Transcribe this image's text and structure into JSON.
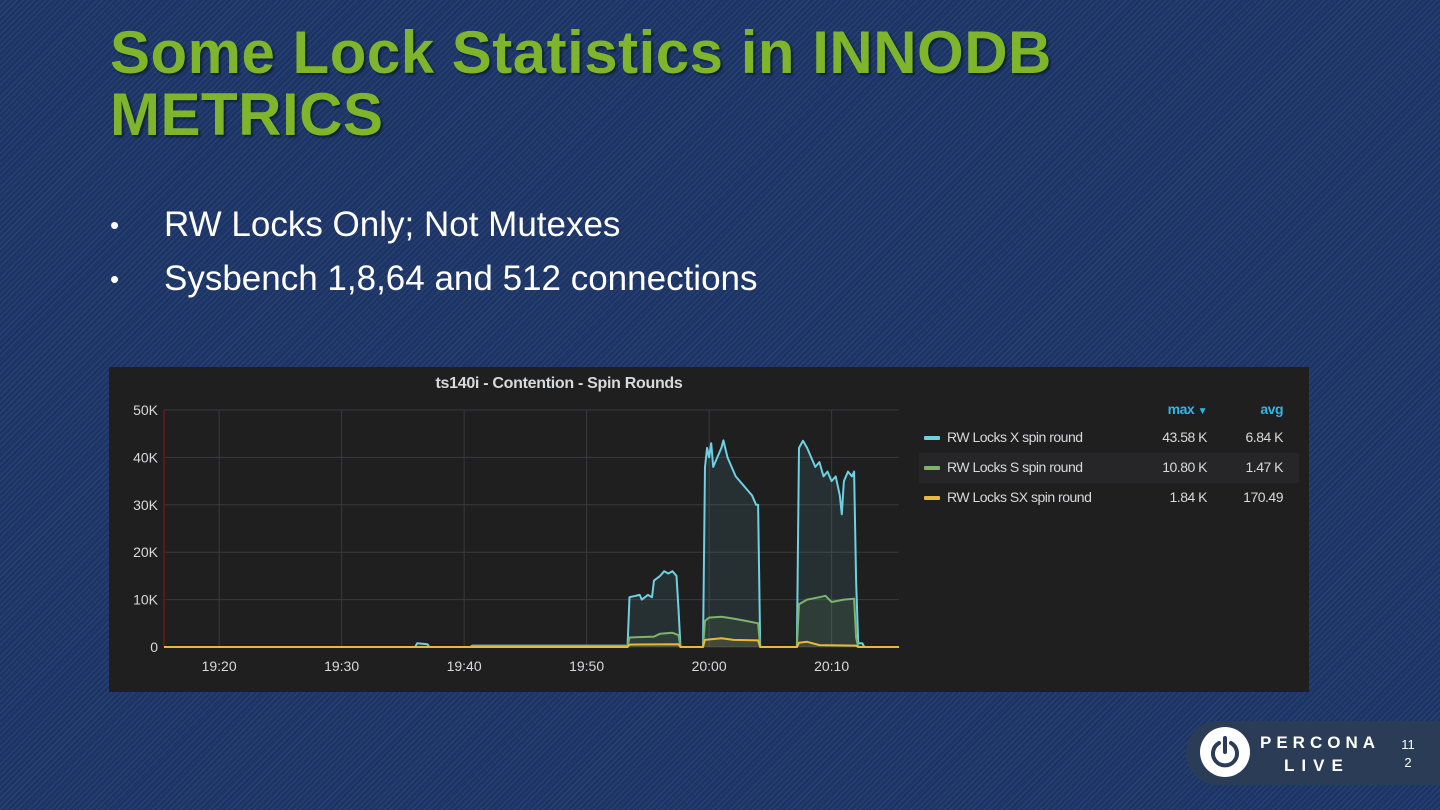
{
  "slide": {
    "title": "Some Lock Statistics in INNODB METRICS",
    "bullets": [
      "RW Locks Only; Not Mutexes",
      "Sysbench 1,8,64 and 512 connections"
    ],
    "bullet_glyph": "•",
    "page_number": "112"
  },
  "branding": {
    "logo_word_1": "PERCONA",
    "logo_word_2": "LIVE",
    "logo_icon": "power-icon"
  },
  "chart_data": {
    "type": "line",
    "title": "ts140i - Contention - Spin Rounds",
    "xlabel": "",
    "ylabel": "",
    "ylim": [
      0,
      50000
    ],
    "xlim": [
      "19:15:30",
      "20:15:30"
    ],
    "y_ticks": [
      0,
      10000,
      20000,
      30000,
      40000,
      50000
    ],
    "y_tick_labels": [
      "0",
      "10K",
      "20K",
      "30K",
      "40K",
      "50K"
    ],
    "x_tick_values": [
      "19:20",
      "19:30",
      "19:40",
      "19:50",
      "20:00",
      "20:10"
    ],
    "x_tick_labels": [
      "19:20",
      "19:30",
      "19:40",
      "19:50",
      "20:00",
      "20:10"
    ],
    "grid": true,
    "fill": true,
    "legend_position": "right",
    "legend_columns": [
      "max",
      "avg"
    ],
    "legend_sort_indicator": "▼",
    "series": [
      {
        "name": "RW Locks X spin round",
        "color": "#6ed0e0",
        "max": "43.58 K",
        "avg": "6.84 K",
        "points": [
          [
            "19:15:30",
            0
          ],
          [
            "19:36:00",
            0
          ],
          [
            "19:36:10",
            800
          ],
          [
            "19:37:00",
            600
          ],
          [
            "19:37:10",
            0
          ],
          [
            "19:40:30",
            0
          ],
          [
            "19:40:40",
            300
          ],
          [
            "19:53:10",
            300
          ],
          [
            "19:53:20",
            0
          ],
          [
            "19:53:30",
            10500
          ],
          [
            "19:54:20",
            11000
          ],
          [
            "19:54:30",
            10000
          ],
          [
            "19:55:00",
            11000
          ],
          [
            "19:55:20",
            10500
          ],
          [
            "19:55:30",
            14000
          ],
          [
            "19:56:00",
            15000
          ],
          [
            "19:56:20",
            16000
          ],
          [
            "19:56:40",
            15500
          ],
          [
            "19:57:00",
            16000
          ],
          [
            "19:57:20",
            15000
          ],
          [
            "19:57:30",
            8000
          ],
          [
            "19:57:40",
            0
          ],
          [
            "19:59:30",
            0
          ],
          [
            "19:59:40",
            38000
          ],
          [
            "19:59:50",
            42000
          ],
          [
            "20:00:00",
            40000
          ],
          [
            "20:00:10",
            43000
          ],
          [
            "20:00:20",
            38000
          ],
          [
            "20:00:40",
            40000
          ],
          [
            "20:01:00",
            42000
          ],
          [
            "20:01:10",
            43580
          ],
          [
            "20:01:30",
            40000
          ],
          [
            "20:01:50",
            38000
          ],
          [
            "20:02:10",
            36000
          ],
          [
            "20:02:30",
            35000
          ],
          [
            "20:02:50",
            34000
          ],
          [
            "20:03:10",
            33000
          ],
          [
            "20:03:30",
            32000
          ],
          [
            "20:03:50",
            30000
          ],
          [
            "20:04:00",
            30000
          ],
          [
            "20:04:10",
            0
          ],
          [
            "20:07:10",
            0
          ],
          [
            "20:07:20",
            42000
          ],
          [
            "20:07:40",
            43500
          ],
          [
            "20:08:00",
            42000
          ],
          [
            "20:08:20",
            40000
          ],
          [
            "20:08:40",
            38000
          ],
          [
            "20:09:00",
            39000
          ],
          [
            "20:09:20",
            36000
          ],
          [
            "20:09:40",
            37000
          ],
          [
            "20:10:00",
            35000
          ],
          [
            "20:10:20",
            36000
          ],
          [
            "20:10:40",
            32000
          ],
          [
            "20:10:50",
            28000
          ],
          [
            "20:11:00",
            35000
          ],
          [
            "20:11:20",
            37000
          ],
          [
            "20:11:40",
            36000
          ],
          [
            "20:11:50",
            37000
          ],
          [
            "20:12:00",
            14000
          ],
          [
            "20:12:10",
            800
          ],
          [
            "20:12:30",
            800
          ],
          [
            "20:12:40",
            0
          ],
          [
            "20:15:30",
            0
          ]
        ]
      },
      {
        "name": "RW Locks S spin round",
        "color": "#7eb26d",
        "max": "10.80 K",
        "avg": "1.47 K",
        "points": [
          [
            "19:15:30",
            0
          ],
          [
            "19:40:30",
            0
          ],
          [
            "19:40:40",
            200
          ],
          [
            "19:53:10",
            200
          ],
          [
            "19:53:20",
            0
          ],
          [
            "19:53:30",
            2000
          ],
          [
            "19:55:30",
            2200
          ],
          [
            "19:56:00",
            2800
          ],
          [
            "19:57:00",
            3000
          ],
          [
            "19:57:30",
            2500
          ],
          [
            "19:57:40",
            0
          ],
          [
            "19:59:30",
            0
          ],
          [
            "19:59:40",
            5500
          ],
          [
            "20:00:00",
            6200
          ],
          [
            "20:01:00",
            6400
          ],
          [
            "20:02:00",
            6000
          ],
          [
            "20:03:00",
            5500
          ],
          [
            "20:04:00",
            5000
          ],
          [
            "20:04:10",
            0
          ],
          [
            "20:07:10",
            0
          ],
          [
            "20:07:20",
            9000
          ],
          [
            "20:08:00",
            10000
          ],
          [
            "20:09:00",
            10500
          ],
          [
            "20:09:30",
            10800
          ],
          [
            "20:10:00",
            9500
          ],
          [
            "20:11:00",
            10000
          ],
          [
            "20:11:50",
            10200
          ],
          [
            "20:12:00",
            2000
          ],
          [
            "20:12:10",
            0
          ],
          [
            "20:15:30",
            0
          ]
        ]
      },
      {
        "name": "RW Locks SX spin round",
        "color": "#eab839",
        "max": "1.84 K",
        "avg": "170.49",
        "points": [
          [
            "19:15:30",
            0
          ],
          [
            "19:53:20",
            0
          ],
          [
            "19:53:30",
            500
          ],
          [
            "19:57:30",
            600
          ],
          [
            "19:57:40",
            0
          ],
          [
            "19:59:30",
            0
          ],
          [
            "19:59:40",
            1500
          ],
          [
            "20:01:00",
            1840
          ],
          [
            "20:02:00",
            1500
          ],
          [
            "20:04:00",
            1400
          ],
          [
            "20:04:10",
            0
          ],
          [
            "20:07:10",
            0
          ],
          [
            "20:07:20",
            900
          ],
          [
            "20:08:00",
            1100
          ],
          [
            "20:09:00",
            400
          ],
          [
            "20:12:00",
            300
          ],
          [
            "20:12:10",
            0
          ],
          [
            "20:15:30",
            0
          ]
        ]
      }
    ]
  }
}
